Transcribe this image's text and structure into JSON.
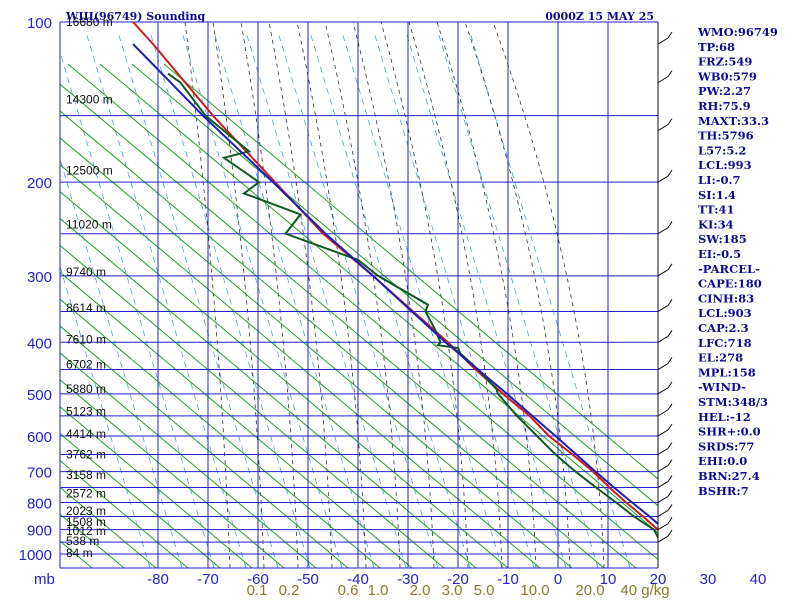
{
  "header": {
    "station": "WIII(96749) Sounding",
    "time": "0000Z 15 MAY 25"
  },
  "colors": {
    "isobar": "#2323c8",
    "isotherm": "#2323c8",
    "dry_adiabat": "#22a022",
    "moist_adiabat": "#333333",
    "mixing_ratio": "#4aa0e0",
    "temperature": "#c81e1e",
    "dewpoint": "#0f5a1e",
    "parcel": "#1e1eb4",
    "index_text": "#0b0b90",
    "mixing_label": "#8a7a2a"
  },
  "pressure_labels": [
    "100",
    "200",
    "300",
    "400",
    "500",
    "600",
    "700",
    "800",
    "900",
    "1000"
  ],
  "pressure_unit": "mb",
  "temperature_labels": [
    "-80",
    "-70",
    "-60",
    "-50",
    "-40",
    "-30",
    "-20",
    "-10",
    "0",
    "10",
    "20",
    "30",
    "40"
  ],
  "height_labels": [
    "16680 m",
    "14300 m",
    "12500 m",
    "11020 m",
    "9740 m",
    "8614 m",
    "7610 m",
    "6702 m",
    "5880 m",
    "5123 m",
    "4414 m",
    "3762 m",
    "3158 m",
    "2572 m",
    "2023 m",
    "1508 m",
    "1012 m",
    "538 m",
    "84 m"
  ],
  "mixing_ratio_labels": [
    "0.1",
    "0.2",
    "0.6",
    "1.0",
    "2.0",
    "3.0",
    "5.0",
    "10.0",
    "20.0",
    "40 g/kg"
  ],
  "indices": [
    "WMO:96749",
    "TP:68",
    "FRZ:549",
    "WB0:579",
    "PW:2.27",
    "RH:75.9",
    "MAXT:33.3",
    "TH:5796",
    "L57:5.2",
    "LCL:993",
    "LI:-0.7",
    "SI:1.4",
    "TT:41",
    "KI:34",
    "SW:185",
    "EI:-0.5",
    "-PARCEL-",
    "CAPE:180",
    "CINH:83",
    "LCL:903",
    "CAP:2.3",
    "LFC:718",
    "EL:278",
    "MPL:158",
    "-WIND-",
    "STM:348/3",
    "HEL:-12",
    "SHR+:0.0",
    "SRDS:77",
    "EHI:0.0",
    "BRN:27.4",
    "BSHR:7"
  ],
  "chart_data": {
    "type": "line",
    "title": "WIII(96749) Sounding",
    "subtitle": "0000Z 15 MAY 25",
    "xlabel": "",
    "ylabel": "mb",
    "xlim": [
      -80,
      40
    ],
    "ylim": [
      1000,
      100
    ],
    "y_scale": "log",
    "skewed": true,
    "grid": true,
    "series": [
      {
        "name": "",
        "role": "temperature",
        "p": [
          1000,
          980,
          950,
          900,
          850,
          800,
          750,
          700,
          650,
          600,
          550,
          500,
          450,
          400,
          350,
          300,
          250,
          200,
          150,
          110,
          100
        ],
        "t": [
          24,
          22.2,
          22,
          20,
          17,
          13.6,
          10.3,
          7,
          2.9,
          -1.8,
          -5.7,
          -11,
          -16.5,
          -22,
          -29,
          -37,
          -47,
          -56.6,
          -69,
          -81,
          -85
        ]
      },
      {
        "name": "",
        "role": "dewpoint",
        "p": [
          1000,
          980,
          950,
          900,
          850,
          800,
          750,
          700,
          650,
          600,
          550,
          500,
          490,
          450,
          420,
          410,
          405,
          400,
          380,
          350,
          340,
          300,
          280,
          250,
          230,
          210,
          200,
          180,
          175,
          150,
          130,
          125
        ],
        "t": [
          23,
          21.8,
          20.5,
          19.2,
          15.2,
          11.6,
          7.6,
          3.5,
          -0.5,
          -4.2,
          -8.2,
          -12,
          -12.3,
          -16,
          -19.5,
          -20,
          -24,
          -23.5,
          -24.5,
          -26.5,
          -26,
          -36,
          -40,
          -54.5,
          -51.5,
          -62.8,
          -59.8,
          -66.8,
          -61.8,
          -70.5,
          -75.5,
          -78
        ]
      },
      {
        "name": "",
        "role": "parcel",
        "p": [
          1000,
          903,
          850,
          800,
          750,
          700,
          600,
          500,
          400,
          300,
          250,
          200,
          150,
          110
        ],
        "t": [
          26.5,
          21.5,
          18.3,
          14.8,
          11.2,
          7.5,
          -0.5,
          -10.2,
          -22.5,
          -37,
          -46.5,
          -57,
          -71,
          -85
        ]
      }
    ]
  }
}
